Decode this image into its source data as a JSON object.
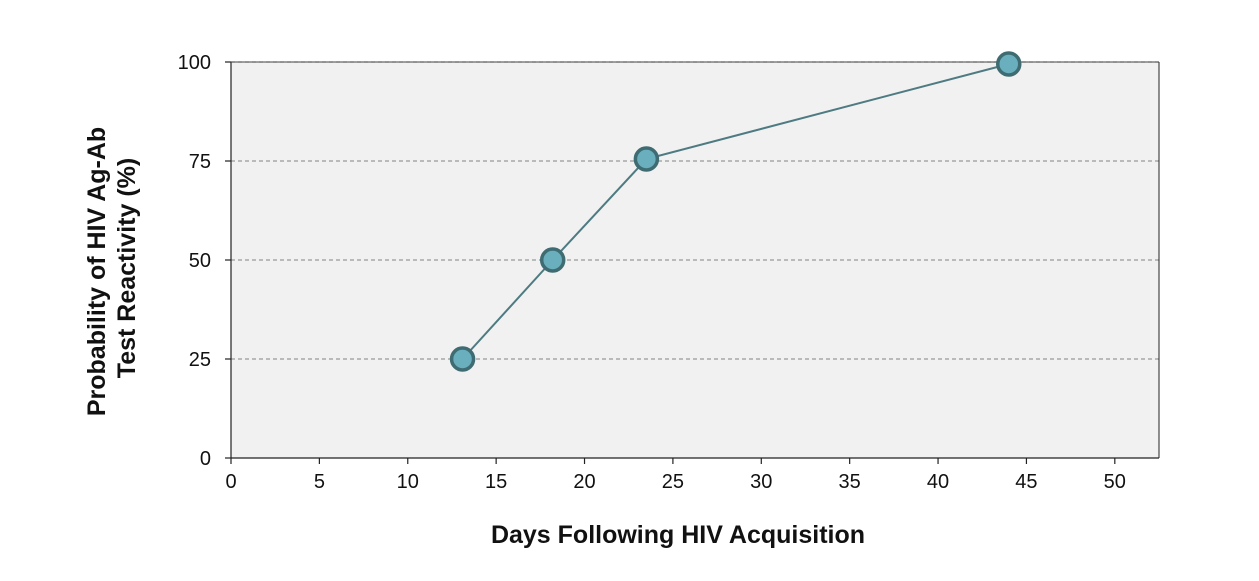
{
  "chart_data": {
    "type": "line",
    "title": "",
    "xlabel": "Days Following HIV Acquisition",
    "ylabel_lines": [
      "Probability of HIV Ag-Ab",
      "Test Reactivity (%)"
    ],
    "xlim": [
      0,
      52.5
    ],
    "ylim": [
      0,
      100
    ],
    "x_ticks": [
      0,
      5,
      10,
      15,
      20,
      25,
      30,
      35,
      40,
      45,
      50
    ],
    "y_ticks": [
      0,
      25,
      50,
      75,
      100
    ],
    "grid": "horizontal dashed",
    "series": [
      {
        "x": [
          13.1,
          18.2,
          23.5,
          44.0
        ],
        "y": [
          25,
          50,
          75.5,
          99.5
        ],
        "line_color": "#4e7b82",
        "marker_fill": "#6aafbd",
        "marker_stroke": "#3f6c72"
      }
    ],
    "plot_background": "#f1f1f1"
  }
}
